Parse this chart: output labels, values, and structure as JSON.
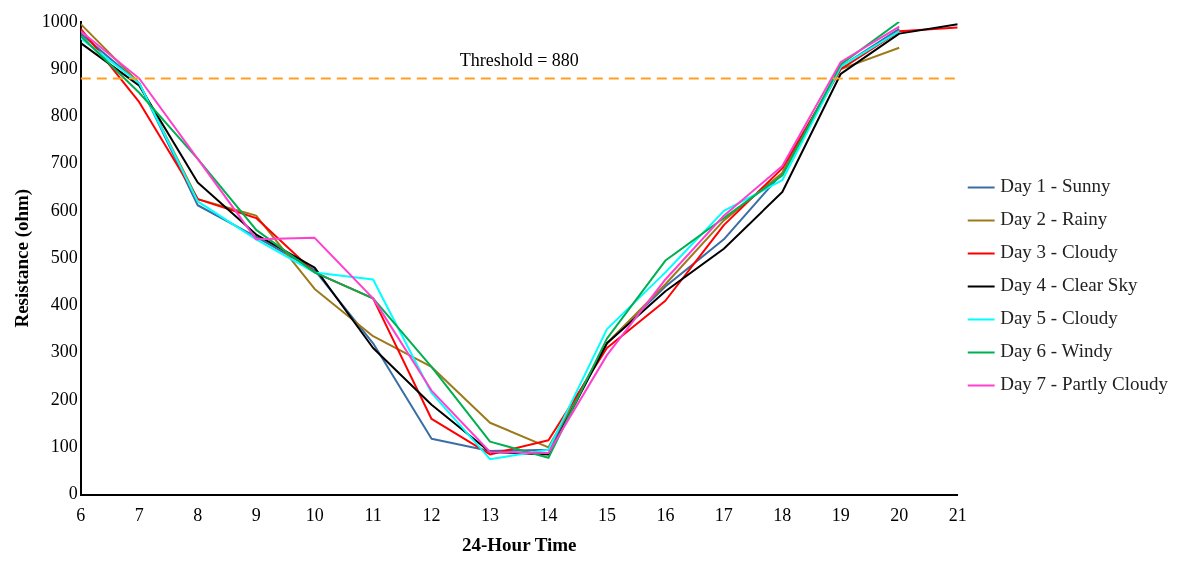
{
  "chart_data": {
    "type": "line",
    "xlabel": "24-Hour Time",
    "ylabel": "Resistance (ohm)",
    "x": [
      6,
      7,
      8,
      9,
      10,
      11,
      12,
      13,
      14,
      15,
      16,
      17,
      18,
      19,
      20
    ],
    "xlim": [
      6,
      21
    ],
    "xticks": [
      6,
      7,
      8,
      9,
      10,
      11,
      12,
      13,
      14,
      15,
      16,
      17,
      18,
      19,
      20,
      21
    ],
    "ylim": [
      0,
      1000
    ],
    "yticks": [
      0,
      100,
      200,
      300,
      400,
      500,
      600,
      700,
      800,
      900,
      1000
    ],
    "grid": false,
    "legend": "right",
    "marker": "none",
    "line_style": "solid",
    "ref_lines": [
      {
        "axis": "y",
        "value": 880,
        "label": "Threshold = 880",
        "color": "#ffa020",
        "line_style": "dashed"
      }
    ],
    "series": [
      {
        "name": "Day 1 - Sunny",
        "color": "#3a6ea5",
        "values": [
          975,
          870,
          612,
          545,
          475,
          320,
          118,
          92,
          95,
          320,
          440,
          540,
          680,
          905,
          985
        ]
      },
      {
        "name": "Day 2 - Rainy",
        "color": "#9c7a1c",
        "values": [
          995,
          870,
          625,
          590,
          435,
          335,
          270,
          152,
          100,
          320,
          445,
          580,
          680,
          900,
          945
        ]
      },
      {
        "name": "Day 3 - Cloudy",
        "color": "#ff0000",
        "x": [
          6,
          7,
          8,
          9,
          10,
          11,
          12,
          13,
          14,
          15,
          16,
          17,
          18,
          19,
          20,
          21
        ],
        "values": [
          985,
          830,
          625,
          585,
          470,
          415,
          160,
          85,
          115,
          310,
          410,
          570,
          690,
          900,
          980,
          988
        ]
      },
      {
        "name": "Day 4 - Clear Sky",
        "color": "#000000",
        "x": [
          6,
          7,
          8,
          9,
          10,
          11,
          12,
          13,
          14,
          15,
          16,
          17,
          18,
          19,
          20,
          21
        ],
        "values": [
          955,
          865,
          660,
          550,
          480,
          310,
          190,
          90,
          85,
          320,
          430,
          520,
          640,
          890,
          975,
          995
        ]
      },
      {
        "name": "Day 5 - Cloudy",
        "color": "#00ffff",
        "values": [
          965,
          870,
          620,
          540,
          470,
          455,
          215,
          75,
          95,
          350,
          470,
          600,
          665,
          905,
          980
        ]
      },
      {
        "name": "Day 6 - Windy",
        "color": "#00b050",
        "values": [
          970,
          850,
          710,
          560,
          470,
          415,
          270,
          112,
          78,
          330,
          495,
          585,
          675,
          910,
          1000
        ]
      },
      {
        "name": "Day 7 - Partly Cloudy",
        "color": "#ff3fd0",
        "values": [
          980,
          880,
          710,
          540,
          543,
          415,
          220,
          90,
          88,
          295,
          455,
          590,
          695,
          915,
          990
        ]
      }
    ]
  }
}
